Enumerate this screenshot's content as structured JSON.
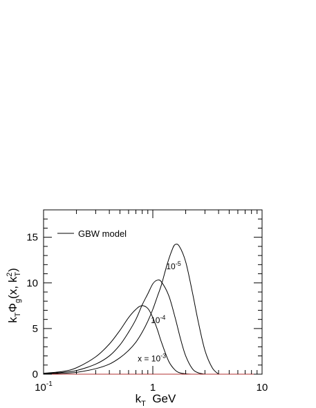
{
  "chart_data": {
    "type": "line",
    "xscale": "log",
    "xlim": [
      0.1,
      10
    ],
    "ylim": [
      0,
      18
    ],
    "xlabel": {
      "main": "k",
      "sub": "T",
      "unit": "GeV"
    },
    "ylabel": {
      "p1": "k",
      "s1": "T",
      "p2": "Φ",
      "s2": "g",
      "p3": "(x, k",
      "sup": "2",
      "s3": "T",
      "p4": ")"
    },
    "xticks": [
      {
        "value": 0.1,
        "base": "10",
        "exp": "-1"
      },
      {
        "value": 1,
        "base": "1",
        "exp": ""
      },
      {
        "value": 10,
        "base": "10",
        "exp": ""
      }
    ],
    "yticks": [
      {
        "value": 0,
        "label": "0"
      },
      {
        "value": 5,
        "label": "5"
      },
      {
        "value": 10,
        "label": "10"
      },
      {
        "value": 15,
        "label": "15"
      }
    ],
    "legend": {
      "label": "GBW model",
      "placement": "top-left"
    },
    "series": [
      {
        "label": {
          "prefix": "x = ",
          "base": "10",
          "exp": "-3"
        },
        "x": [
          0.1,
          0.15,
          0.2,
          0.3,
          0.4,
          0.5,
          0.6,
          0.7,
          0.79,
          0.9,
          1.0,
          1.1,
          1.2,
          1.4,
          1.6,
          1.8,
          2.1,
          2.4
        ],
        "y": [
          0.1,
          0.3,
          0.7,
          1.9,
          3.3,
          4.8,
          6.2,
          7.1,
          7.5,
          7.2,
          6.2,
          4.9,
          3.5,
          1.4,
          0.45,
          0.12,
          0.02,
          0
        ]
      },
      {
        "label": {
          "prefix": "",
          "base": "10",
          "exp": "-4"
        },
        "x": [
          0.1,
          0.15,
          0.2,
          0.3,
          0.4,
          0.5,
          0.6,
          0.7,
          0.8,
          0.9,
          1.0,
          1.1,
          1.2,
          1.4,
          1.6,
          1.8,
          2.0,
          2.3,
          2.6,
          3.0
        ],
        "y": [
          0.05,
          0.2,
          0.4,
          1.1,
          2.0,
          3.2,
          4.6,
          6.0,
          7.6,
          8.8,
          9.9,
          10.3,
          10.1,
          8.6,
          6.2,
          3.8,
          2.0,
          0.6,
          0.15,
          0
        ]
      },
      {
        "label": {
          "prefix": "",
          "base": "10",
          "exp": "-5"
        },
        "x": [
          0.1,
          0.15,
          0.2,
          0.3,
          0.4,
          0.5,
          0.6,
          0.7,
          0.8,
          0.9,
          1.0,
          1.1,
          1.2,
          1.35,
          1.5,
          1.6,
          1.75,
          2.0,
          2.3,
          2.6,
          3.0,
          3.5,
          4.0
        ],
        "y": [
          0.02,
          0.1,
          0.2,
          0.6,
          1.1,
          1.8,
          2.6,
          3.5,
          4.6,
          5.8,
          7.1,
          8.5,
          9.8,
          12.0,
          13.6,
          14.2,
          14.0,
          12.3,
          9.0,
          5.8,
          2.6,
          0.7,
          0
        ]
      }
    ]
  }
}
